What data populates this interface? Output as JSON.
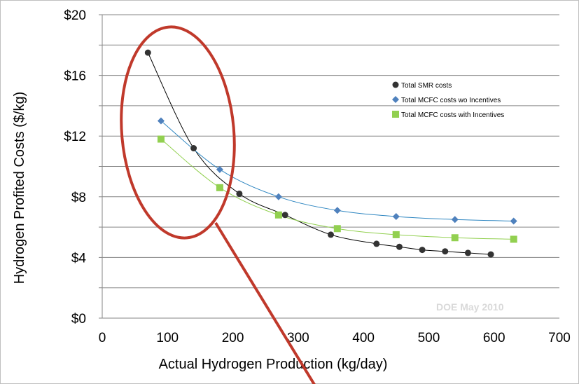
{
  "chart_data": {
    "type": "scatter",
    "title": "",
    "xlabel": "Actual Hydrogen Production (kg/day)",
    "ylabel": "Hydrogen Profited Costs ($/kg)",
    "xlim": [
      0,
      700
    ],
    "ylim": [
      0,
      20
    ],
    "x_ticks": [
      "0",
      "100",
      "200",
      "300",
      "400",
      "500",
      "600",
      "700"
    ],
    "y_ticks": [
      "$0",
      "$4",
      "$8",
      "$12",
      "$16",
      "$20"
    ],
    "grid": "horizontal",
    "legend_position": "top-right",
    "trendlines": true,
    "source_note": "DOE May 2010",
    "series": [
      {
        "name": "Total SMR costs",
        "marker": "circle",
        "color": "#333333",
        "line_color": "#000000",
        "x": [
          70,
          140,
          210,
          280,
          350,
          420,
          455,
          490,
          525,
          560,
          595
        ],
        "y": [
          17.5,
          11.2,
          8.2,
          6.8,
          5.5,
          4.9,
          4.7,
          4.5,
          4.4,
          4.3,
          4.2
        ]
      },
      {
        "name": "Total MCFC costs wo Incentives",
        "marker": "diamond",
        "color": "#4f81bd",
        "line_color": "#2e86c1",
        "x": [
          90,
          180,
          270,
          360,
          450,
          540,
          630
        ],
        "y": [
          13.0,
          9.8,
          8.0,
          7.1,
          6.7,
          6.5,
          6.4
        ]
      },
      {
        "name": "Total MCFC costs with Incentives",
        "marker": "square",
        "color": "#92d050",
        "line_color": "#92d050",
        "x": [
          90,
          180,
          270,
          360,
          450,
          540,
          630
        ],
        "y": [
          11.8,
          8.6,
          6.8,
          5.9,
          5.5,
          5.3,
          5.2
        ]
      }
    ]
  },
  "annotation": {
    "ellipse_color": "#c0392b",
    "pointer_color": "#c0392b"
  }
}
